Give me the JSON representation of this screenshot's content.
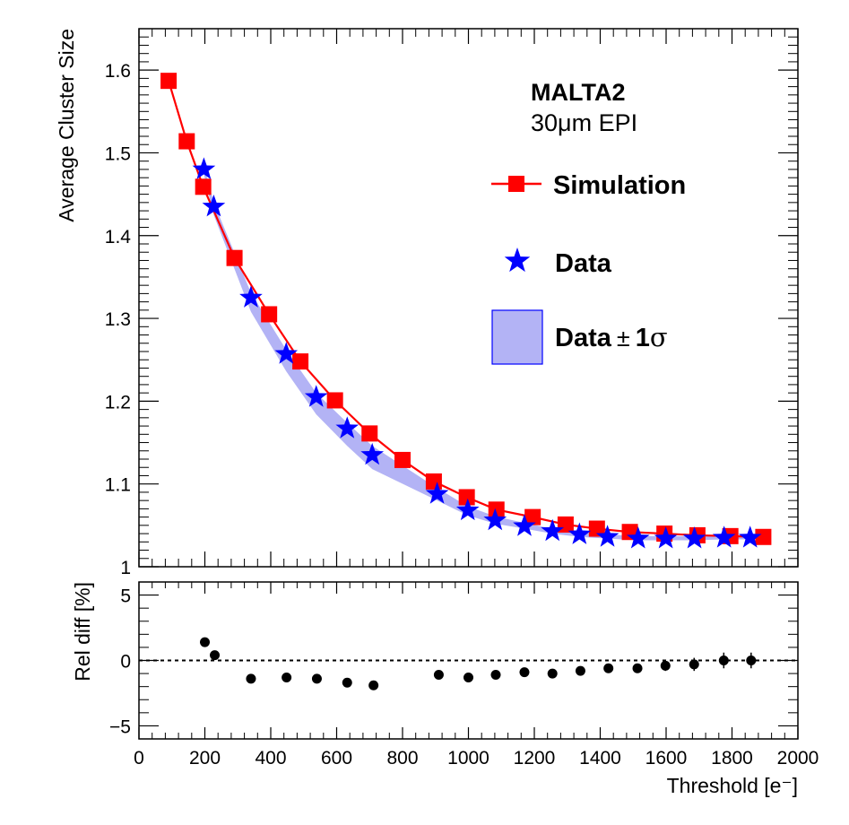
{
  "chart_data": [
    {
      "panel": "main",
      "type": "line",
      "title": "",
      "xlabel": "",
      "ylabel": "Average Cluster Size",
      "xlim": [
        0,
        2000
      ],
      "ylim": [
        1.0,
        1.65
      ],
      "x_ticks": [
        0,
        200,
        400,
        600,
        800,
        1000,
        1200,
        1400,
        1600,
        1800,
        2000
      ],
      "y_ticks": [
        1,
        1.1,
        1.2,
        1.3,
        1.4,
        1.5,
        1.6
      ],
      "y_tick_labels": [
        "1",
        "1.1",
        "1.2",
        "1.3",
        "1.4",
        "1.5",
        "1.6"
      ],
      "grid": false,
      "annotations": {
        "title": "MALTA2",
        "subtitle": "30μm EPI"
      },
      "legend": {
        "placement": "top-right",
        "entries": [
          {
            "id": "simulation",
            "label": "Simulation",
            "marker": "square",
            "color": "#ff0000"
          },
          {
            "id": "data",
            "label": "Data",
            "marker": "star",
            "color": "#0000ff"
          },
          {
            "id": "band",
            "label_main": "Data",
            "label_pm": "±",
            "label_one": "1",
            "label_sigma": "σ",
            "marker": "box",
            "color": "#b3b3f5",
            "edge": "#0000ff"
          }
        ]
      },
      "series": [
        {
          "name": "Simulation",
          "color": "#ff0000",
          "marker": "square",
          "x": [
            90,
            145,
            195,
            290,
            395,
            490,
            595,
            700,
            800,
            895,
            995,
            1085,
            1195,
            1295,
            1390,
            1490,
            1595,
            1695,
            1795,
            1895
          ],
          "y": [
            1.587,
            1.514,
            1.459,
            1.373,
            1.305,
            1.248,
            1.201,
            1.161,
            1.129,
            1.103,
            1.084,
            1.069,
            1.06,
            1.051,
            1.046,
            1.042,
            1.04,
            1.038,
            1.037,
            1.036
          ]
        },
        {
          "name": "Data",
          "color": "#0000ff",
          "marker": "star",
          "x": [
            197,
            227,
            340,
            447,
            538,
            632,
            708,
            905,
            998,
            1081,
            1170,
            1255,
            1337,
            1422,
            1515,
            1599,
            1686,
            1776,
            1855
          ],
          "y": [
            1.48,
            1.435,
            1.325,
            1.257,
            1.205,
            1.167,
            1.135,
            1.088,
            1.068,
            1.056,
            1.049,
            1.043,
            1.039,
            1.036,
            1.034,
            1.034,
            1.034,
            1.035,
            1.035
          ]
        },
        {
          "name": "Data ± 1σ",
          "type": "band",
          "color": "#b3b3f5",
          "x": [
            197,
            227,
            340,
            447,
            538,
            632,
            708,
            905,
            998,
            1081,
            1170,
            1255,
            1337,
            1422,
            1515,
            1599,
            1686,
            1776,
            1855
          ],
          "y_low": [
            1.474,
            1.425,
            1.308,
            1.236,
            1.184,
            1.146,
            1.118,
            1.08,
            1.062,
            1.052,
            1.046,
            1.04,
            1.036,
            1.034,
            1.032,
            1.032,
            1.032,
            1.033,
            1.033
          ],
          "y_high": [
            1.484,
            1.44,
            1.331,
            1.262,
            1.21,
            1.174,
            1.146,
            1.095,
            1.073,
            1.061,
            1.053,
            1.046,
            1.042,
            1.039,
            1.037,
            1.037,
            1.037,
            1.038,
            1.038
          ]
        }
      ]
    },
    {
      "panel": "ratio",
      "type": "scatter",
      "xlabel": "Threshold [e⁻]",
      "ylabel": "Rel diff [%]",
      "xlim": [
        0,
        2000
      ],
      "ylim": [
        -6,
        6
      ],
      "x_ticks": [
        0,
        200,
        400,
        600,
        800,
        1000,
        1200,
        1400,
        1600,
        1800,
        2000
      ],
      "x_tick_labels": [
        "0",
        "200",
        "400",
        "600",
        "800",
        "1000",
        "1200",
        "1400",
        "1600",
        "1800",
        "2000"
      ],
      "y_ticks": [
        -5,
        0,
        5
      ],
      "y_tick_labels": [
        "−5",
        "0",
        "5"
      ],
      "reference_line": 0,
      "series": [
        {
          "name": "Rel diff",
          "color": "#000000",
          "x": [
            200,
            230,
            340,
            448,
            540,
            632,
            712,
            910,
            1000,
            1083,
            1170,
            1255,
            1340,
            1425,
            1513,
            1598,
            1685,
            1775,
            1858
          ],
          "y": [
            1.4,
            0.4,
            -1.4,
            -1.3,
            -1.4,
            -1.7,
            -1.9,
            -1.1,
            -1.3,
            -1.1,
            -0.9,
            -1.0,
            -0.8,
            -0.6,
            -0.6,
            -0.4,
            -0.3,
            0.0,
            0.0
          ],
          "err": [
            0.2,
            0.2,
            0.2,
            0.2,
            0.2,
            0.2,
            0.2,
            0.2,
            0.2,
            0.2,
            0.2,
            0.2,
            0.2,
            0.3,
            0.3,
            0.4,
            0.5,
            0.6,
            0.6
          ]
        }
      ]
    }
  ]
}
